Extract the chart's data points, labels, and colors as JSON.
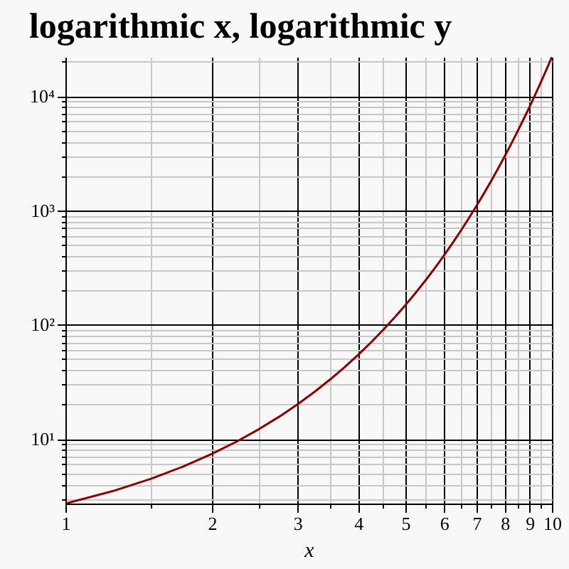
{
  "chart_data": {
    "type": "line",
    "title": "logarithmic x, logarithmic y",
    "xlabel": "x",
    "x": [
      1,
      1.25,
      1.5,
      1.75,
      2,
      2.25,
      2.5,
      2.75,
      3,
      3.25,
      3.5,
      3.75,
      4,
      4.25,
      4.5,
      4.75,
      5,
      5.25,
      5.5,
      5.75,
      6,
      6.25,
      6.5,
      6.75,
      7,
      7.25,
      7.5,
      7.75,
      8,
      8.25,
      8.5,
      8.75,
      9,
      9.25,
      9.5,
      9.75,
      10
    ],
    "series": [
      {
        "color": "#8b0000",
        "values": [
          2.718,
          3.49,
          4.482,
          5.755,
          7.389,
          9.488,
          12.18,
          15.64,
          20.09,
          25.79,
          33.12,
          42.52,
          54.6,
          70.11,
          90.02,
          115.6,
          148.4,
          190.6,
          244.7,
          314.2,
          403.4,
          518.0,
          665.1,
          854.1,
          1097,
          1408,
          1808,
          2322,
          2981,
          3828,
          4915,
          6311,
          8103,
          10405,
          13360,
          17154,
          22026
        ]
      }
    ],
    "log": "xy",
    "grid": true,
    "line_style": "solid",
    "marker": "none",
    "xlim": [
      1,
      10
    ],
    "ylim": [
      2.718,
      22026
    ],
    "xticks": [
      1,
      {
        "value": 1.5,
        "label": null
      },
      2,
      {
        "value": 2.5,
        "label": null
      },
      3,
      {
        "value": 3.5,
        "label": null
      },
      4,
      {
        "value": 4.5,
        "label": null
      },
      5,
      {
        "value": 5.5,
        "label": null
      },
      6,
      {
        "value": 6.5,
        "label": null
      },
      7,
      {
        "value": 7.5,
        "label": null
      },
      8,
      {
        "value": 8.5,
        "label": null
      },
      9,
      {
        "value": 9.5,
        "label": null
      },
      10
    ],
    "yticks": [
      {
        "value": 3,
        "label": null
      },
      {
        "value": 4,
        "label": null
      },
      {
        "value": 5,
        "label": null
      },
      {
        "value": 6,
        "label": null
      },
      {
        "value": 7,
        "label": null
      },
      {
        "value": 8,
        "label": null
      },
      {
        "value": 9,
        "label": null
      },
      {
        "value": 10,
        "label": "10¹"
      },
      {
        "value": 20,
        "label": null
      },
      {
        "value": 30,
        "label": null
      },
      {
        "value": 40,
        "label": null
      },
      {
        "value": 50,
        "label": null
      },
      {
        "value": 60,
        "label": null
      },
      {
        "value": 70,
        "label": null
      },
      {
        "value": 80,
        "label": null
      },
      {
        "value": 90,
        "label": null
      },
      {
        "value": 100,
        "label": "10²"
      },
      {
        "value": 200,
        "label": null
      },
      {
        "value": 300,
        "label": null
      },
      {
        "value": 400,
        "label": null
      },
      {
        "value": 500,
        "label": null
      },
      {
        "value": 600,
        "label": null
      },
      {
        "value": 700,
        "label": null
      },
      {
        "value": 800,
        "label": null
      },
      {
        "value": 900,
        "label": null
      },
      {
        "value": 1000,
        "label": "10³"
      },
      {
        "value": 2000,
        "label": null
      },
      {
        "value": 3000,
        "label": null
      },
      {
        "value": 4000,
        "label": null
      },
      {
        "value": 5000,
        "label": null
      },
      {
        "value": 6000,
        "label": null
      },
      {
        "value": 7000,
        "label": null
      },
      {
        "value": 8000,
        "label": null
      },
      {
        "value": 9000,
        "label": null
      },
      {
        "value": 10000,
        "label": "10⁴"
      },
      {
        "value": 20000,
        "label": null
      }
    ]
  }
}
